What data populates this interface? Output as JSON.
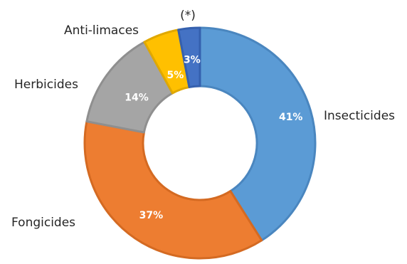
{
  "chart_data": {
    "type": "pie",
    "categories": [
      "Insecticides",
      "Fongicides",
      "Herbicides",
      "Anti-limaces",
      "(*)"
    ],
    "values": [
      41,
      37,
      14,
      5,
      3
    ],
    "value_labels": [
      "41%",
      "37%",
      "14%",
      "5%",
      "3%"
    ],
    "colors": [
      "#5B9BD5",
      "#ED7D31",
      "#A5A5A5",
      "#FFC000",
      "#4472C4"
    ],
    "stroke_colors": [
      "#4A86BF",
      "#D46A22",
      "#8F8F8F",
      "#E0A800",
      "#3560AE"
    ],
    "donut": true
  }
}
